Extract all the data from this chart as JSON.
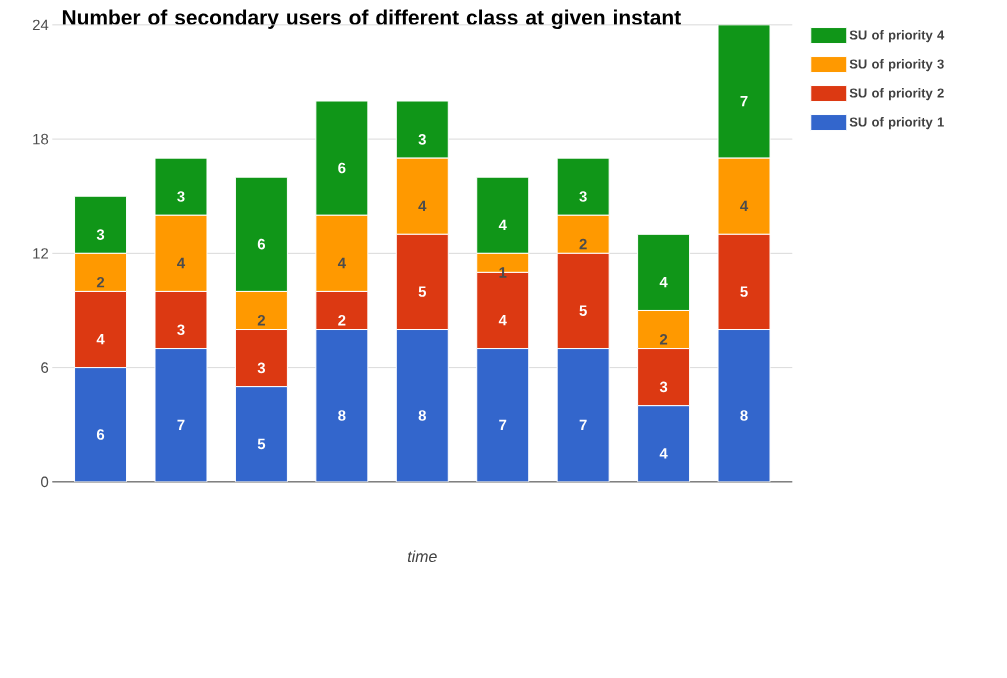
{
  "chart_data": {
    "type": "bar",
    "stacked": true,
    "title": "Number of secondary users of different class at given instant",
    "xlabel": "time",
    "categories": [
      null,
      null,
      null,
      null,
      null,
      null,
      null,
      null,
      null
    ],
    "series": [
      {
        "name": "SU of priority 1",
        "color": "#3366cc",
        "values": [
          6,
          7,
          5,
          8,
          8,
          7,
          7,
          4,
          8
        ]
      },
      {
        "name": "SU of priority 2",
        "color": "#dc3912",
        "values": [
          4,
          3,
          3,
          2,
          5,
          4,
          5,
          3,
          5
        ]
      },
      {
        "name": "SU of priority 3",
        "color": "#ff9900",
        "values": [
          2,
          4,
          2,
          4,
          4,
          1,
          2,
          2,
          4
        ]
      },
      {
        "name": "SU of priority 4",
        "color": "#109618",
        "values": [
          3,
          3,
          6,
          6,
          3,
          4,
          3,
          4,
          7
        ]
      }
    ],
    "ylim": [
      0,
      24
    ],
    "yticks": [
      0,
      6,
      12,
      18,
      24
    ],
    "grid": "y",
    "legend": "right",
    "data_labels": true
  }
}
